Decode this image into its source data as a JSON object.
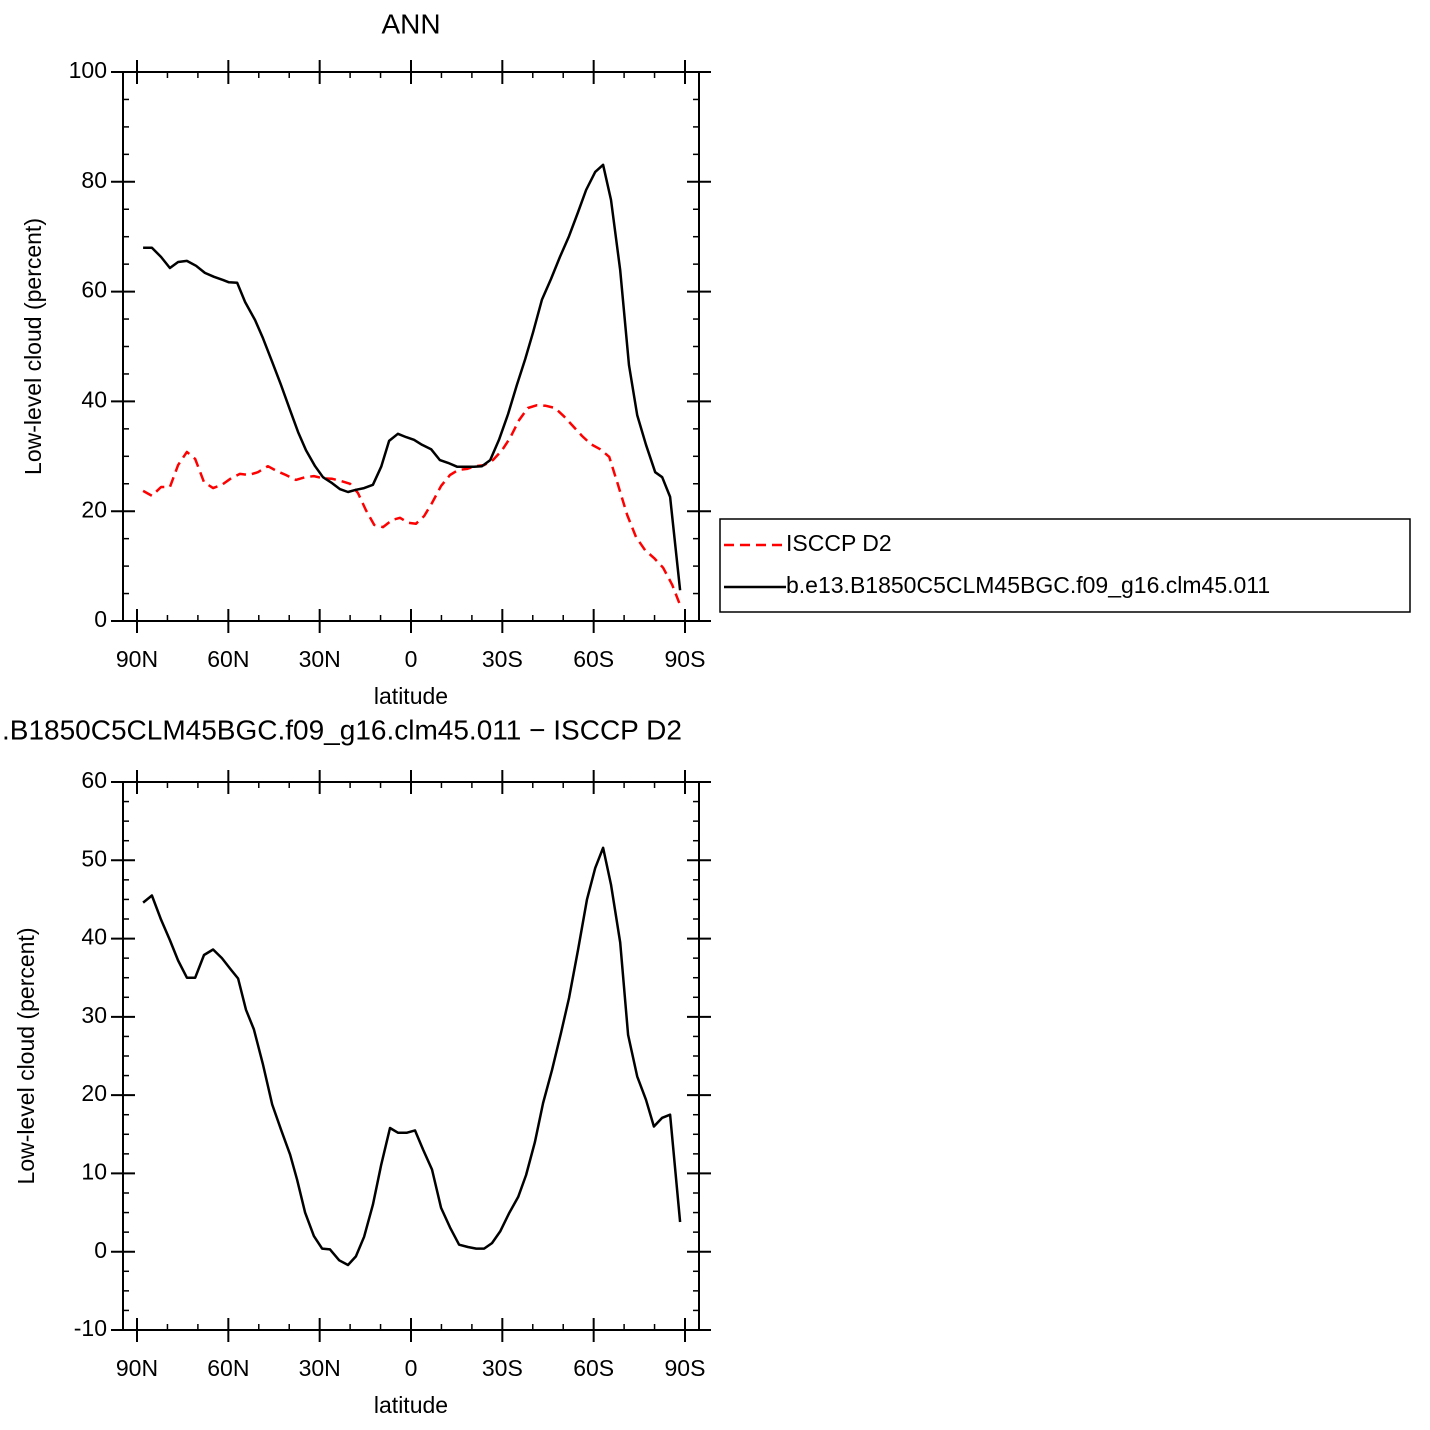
{
  "chart_data": [
    {
      "type": "line",
      "title": "ANN",
      "xlabel": "latitude",
      "ylabel": "Low-level cloud (percent)",
      "xlim": [
        94.6,
        -94.6
      ],
      "ylim": [
        0,
        100
      ],
      "xticks": [
        {
          "value": 90,
          "label": "90N"
        },
        {
          "value": 60,
          "label": "60N"
        },
        {
          "value": 30,
          "label": "30N"
        },
        0,
        {
          "value": -30,
          "label": "30S"
        },
        {
          "value": -60,
          "label": "60S"
        },
        {
          "value": -90,
          "label": "90S"
        }
      ],
      "yticks": [
        0,
        20,
        40,
        60,
        80,
        100
      ],
      "legend": "right",
      "series": [
        {
          "name": "ISCCP D2",
          "color": "#ff0000",
          "dashed": true,
          "x": [
            88,
            85.1,
            82.1,
            79.2,
            76.5,
            73.6,
            70.9,
            68,
            65,
            62.1,
            59.1,
            56.2,
            53.2,
            50.3,
            47,
            44,
            41.1,
            37.8,
            34.8,
            31.9,
            28.9,
            25.9,
            23,
            20,
            17.4,
            14.8,
            12.1,
            9.2,
            6.2,
            3.6,
            1,
            -1.6,
            -4.3,
            -6.9,
            -9.9,
            -12.8,
            -15.5,
            -18.4,
            -21,
            -24,
            -26.9,
            -29.9,
            -32.5,
            -35.5,
            -38.4,
            -41.4,
            -44.3,
            -47.3,
            -50.2,
            -53.2,
            -56.2,
            -59.1,
            -62.1,
            -65.1,
            -68,
            -71,
            -73.9,
            -76.9,
            -79.8,
            -82.8,
            -85.8,
            -88.4
          ],
          "values": [
            23.7,
            22.8,
            24.4,
            24.4,
            28.4,
            30.8,
            29.5,
            25.3,
            24.2,
            24.8,
            26,
            26.8,
            26.6,
            27.1,
            28.2,
            27.3,
            26.6,
            25.7,
            26.2,
            26.4,
            26,
            25.9,
            25.5,
            25,
            23.3,
            20.2,
            17.5,
            17.1,
            18.4,
            18.8,
            17.9,
            17.7,
            19.1,
            21.5,
            24.6,
            26.6,
            27.5,
            27.7,
            28.2,
            28.4,
            29.3,
            31.1,
            33.3,
            36.6,
            38.8,
            39.3,
            39.2,
            38.8,
            37.3,
            35.5,
            33.7,
            32.2,
            31.3,
            29.9,
            24.8,
            19.3,
            15.3,
            12.9,
            11.5,
            9.7,
            6.6,
            2.9
          ]
        },
        {
          "name": "b.e13.B1850C5CLM45BGC.f09_g16.clm45.011",
          "color": "#000000",
          "dashed": false,
          "x": [
            88,
            85.1,
            82.1,
            79.2,
            76.5,
            73.6,
            70.6,
            67.7,
            64.7,
            61.7,
            59.8,
            57.1,
            54.5,
            51.2,
            48.6,
            45.6,
            42.7,
            39.7,
            37.1,
            34.5,
            31.5,
            28.9,
            25.9,
            23.3,
            20.7,
            18.1,
            15.4,
            12.5,
            9.8,
            7.2,
            4.3,
            1.6,
            -1,
            -3.6,
            -6.6,
            -9.5,
            -12.2,
            -15.1,
            -17.8,
            -20.7,
            -23.3,
            -26,
            -28.9,
            -31.9,
            -34.8,
            -37.5,
            -40.1,
            -43,
            -46,
            -48.9,
            -51.9,
            -54.9,
            -57.5,
            -60.5,
            -63.1,
            -65.7,
            -68.7,
            -71.6,
            -74.3,
            -77.2,
            -80.2,
            -82.5,
            -85.1,
            -88.4
          ],
          "values": [
            68,
            68,
            66.3,
            64.3,
            65.4,
            65.6,
            64.7,
            63.4,
            62.7,
            62.1,
            61.7,
            61.6,
            58.1,
            54.8,
            51.5,
            47.2,
            43,
            38.4,
            34.4,
            31.1,
            28.2,
            26.2,
            25.1,
            24,
            23.5,
            23.9,
            24.2,
            24.8,
            28.1,
            32.8,
            34.1,
            33.5,
            33,
            32.1,
            31.3,
            29.3,
            28.8,
            28.1,
            28.1,
            28.1,
            28.2,
            29.3,
            33,
            37.7,
            43,
            47.7,
            52.6,
            58.5,
            62.3,
            66.3,
            70.1,
            74.5,
            78.5,
            81.8,
            83.1,
            76.7,
            63.9,
            46.6,
            37.5,
            32.1,
            27.1,
            26.2,
            22.6,
            5.6
          ]
        }
      ]
    },
    {
      "type": "line",
      "title": ".B1850C5CLM45BGC.f09_g16.clm45.011 − ISCCP D2",
      "xlabel": "latitude",
      "ylabel": "Low-level cloud (percent)",
      "xlim": [
        94.6,
        -94.6
      ],
      "ylim": [
        -10,
        60
      ],
      "xticks": [
        {
          "value": 90,
          "label": "90N"
        },
        {
          "value": 60,
          "label": "60N"
        },
        {
          "value": 30,
          "label": "30N"
        },
        0,
        {
          "value": -30,
          "label": "30S"
        },
        {
          "value": -60,
          "label": "60S"
        },
        {
          "value": -90,
          "label": "90S"
        }
      ],
      "yticks": [
        -10,
        0,
        10,
        20,
        30,
        40,
        50,
        60
      ],
      "series": [
        {
          "color": "#000000",
          "dashed": false,
          "x": [
            88,
            85.1,
            82.1,
            79.2,
            76.5,
            73.6,
            70.9,
            68,
            65,
            62.1,
            59.1,
            56.8,
            54.2,
            51.6,
            48.6,
            45.6,
            42.7,
            39.7,
            37.4,
            34.8,
            31.9,
            29.2,
            26.6,
            23.6,
            20.7,
            18.1,
            15.4,
            12.5,
            9.8,
            6.9,
            4.3,
            1.3,
            -1.3,
            -4,
            -6.9,
            -9.9,
            -12.8,
            -15.8,
            -18.7,
            -21.4,
            -24,
            -26.6,
            -29.3,
            -32.2,
            -35.2,
            -37.8,
            -40.7,
            -43.4,
            -46.3,
            -49.3,
            -51.9,
            -54.9,
            -57.8,
            -60.5,
            -63.1,
            -65.7,
            -68.7,
            -71.3,
            -74.3,
            -77.2,
            -79.8,
            -82.5,
            -85.1,
            -88.4
          ],
          "values": [
            44.6,
            45.5,
            42.4,
            39.8,
            37.2,
            35,
            35,
            37.9,
            38.6,
            37.5,
            36,
            34.9,
            30.9,
            28.4,
            23.9,
            18.8,
            15.6,
            12.4,
            9.2,
            5,
            2,
            0.4,
            0.3,
            -1.1,
            -1.7,
            -0.6,
            1.9,
            6,
            11.1,
            15.8,
            15.2,
            15.2,
            15.5,
            13,
            10.5,
            5.6,
            3.1,
            0.9,
            0.6,
            0.4,
            0.4,
            1.1,
            2.6,
            4.9,
            7,
            9.8,
            14,
            19,
            23.2,
            28,
            32.4,
            38.6,
            45,
            49,
            51.6,
            46.9,
            39.5,
            27.7,
            22.4,
            19.4,
            16,
            17.1,
            17.5,
            3.8
          ]
        }
      ]
    }
  ]
}
